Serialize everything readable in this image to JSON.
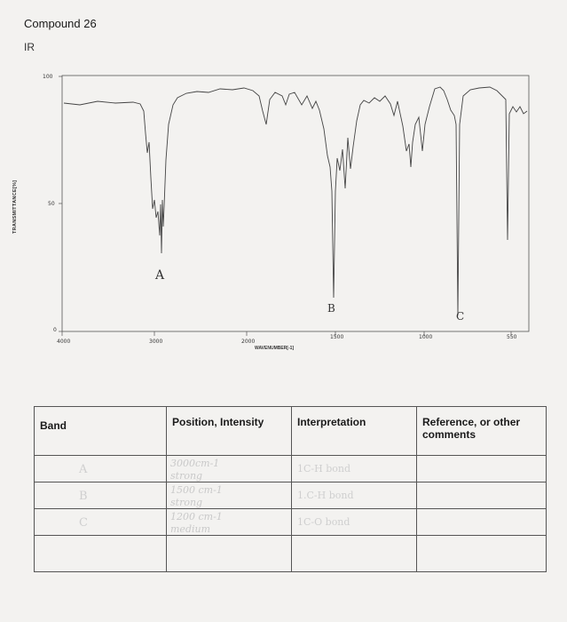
{
  "document": {
    "title": "Compound 26",
    "section": "IR"
  },
  "spectrum": {
    "y_ticks": [
      "100",
      "50",
      "0"
    ],
    "y_label": "TRANSMITTANCE[%]",
    "x_ticks": [
      "4000",
      "3000",
      "2000",
      "1500",
      "1000",
      "550"
    ],
    "x_label": "WAVENUMBER[-1]",
    "annotations": [
      "A",
      "B",
      "C"
    ]
  },
  "table": {
    "headers": [
      "Band",
      "Position, Intensity",
      "Interpretation",
      "Reference, or other comments"
    ],
    "rows": [
      {
        "band": "A",
        "position_line1": "3000cm-1",
        "position_line2": "strong",
        "interpretation": "1C-H bond",
        "reference": ""
      },
      {
        "band": "B",
        "position_line1": "1500 cm-1",
        "position_line2": "strong",
        "interpretation": "1.C-H bond",
        "reference": ""
      },
      {
        "band": "C",
        "position_line1": "1200 cm-1",
        "position_line2": "medium",
        "interpretation": "1C-O bond",
        "reference": ""
      },
      {
        "band": "",
        "position_line1": "",
        "position_line2": "",
        "interpretation": "",
        "reference": ""
      }
    ]
  }
}
